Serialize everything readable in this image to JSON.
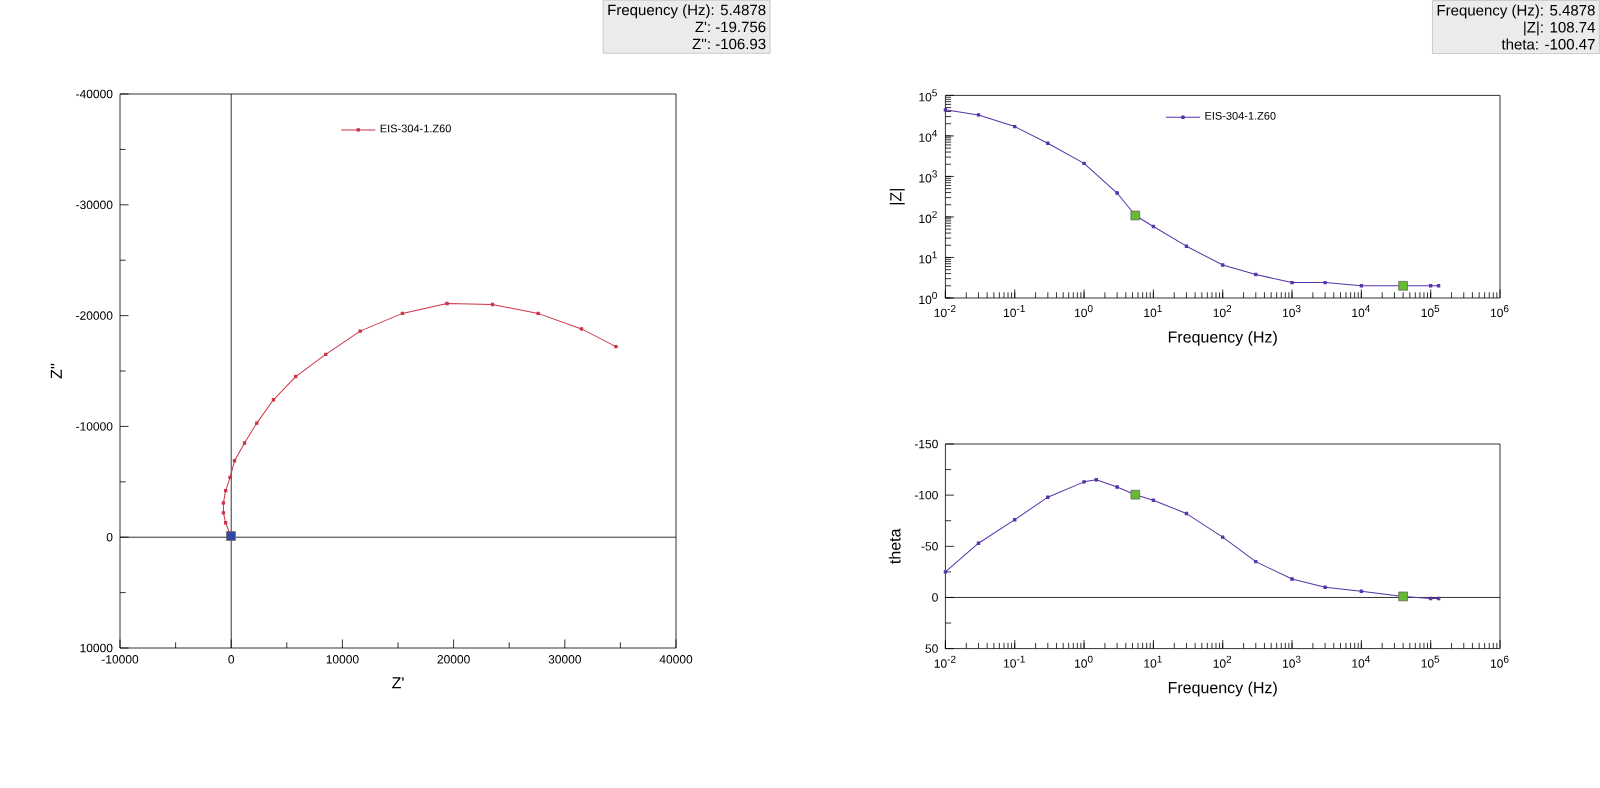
{
  "chart_data": [
    {
      "type": "line",
      "xlabel": "Z'",
      "ylabel": "Z''",
      "xlim": [
        -10000,
        40000
      ],
      "ylim": [
        10000,
        -40000
      ],
      "xticks": [
        -10000,
        0,
        10000,
        20000,
        30000,
        40000
      ],
      "yticks": [
        -40000,
        -30000,
        -20000,
        -10000,
        0,
        10000
      ],
      "legend": "top",
      "marker": "square",
      "line_style": "solid",
      "ref_lines": [
        {
          "axis": "x",
          "value": 0
        },
        {
          "axis": "y",
          "value": 0
        }
      ],
      "annotations": [
        "Frequency (Hz): 5.4878",
        "Z': -19.756",
        "Z'': -106.93"
      ],
      "series": [
        {
          "name": "EIS-304-1.Z60",
          "color": "#cc3344",
          "x": [
            34600,
            31500,
            27600,
            23500,
            19400,
            15400,
            11600,
            8500,
            5800,
            3800,
            2300,
            1200,
            300,
            -100,
            -500,
            -700,
            -700,
            -500,
            -200,
            0
          ],
          "values": [
            -17200,
            -18800,
            -20200,
            -21000,
            -21100,
            -20200,
            -18600,
            -16500,
            -14500,
            -12400,
            -10300,
            -8500,
            -6900,
            -5400,
            -4200,
            -3100,
            -2200,
            -1300,
            null,
            0
          ]
        },
        {
          "type": "scatter",
          "color": "#3344aa",
          "x": [
            -19.756
          ],
          "values": [
            -106.93
          ]
        }
      ]
    },
    {
      "type": "line",
      "xlabel": "Frequency (Hz)",
      "ylabel": "|Z|",
      "log": "xy",
      "xlim": [
        0.01,
        1000000
      ],
      "ylim": [
        1,
        100000
      ],
      "xticks": [
        {
          "value": 0.01,
          "label": "10$^{-2}$"
        },
        {
          "value": 0.1,
          "label": "10$^{-1}$"
        },
        {
          "value": 1,
          "label": "10$^{0}$"
        },
        {
          "value": 10,
          "label": "10$^{1}$"
        },
        {
          "value": 100,
          "label": "10$^{2}$"
        },
        {
          "value": 1000,
          "label": "10$^{3}$"
        },
        {
          "value": 10000,
          "label": "10$^{4}$"
        },
        {
          "value": 100000,
          "label": "10$^{5}$"
        },
        {
          "value": 1000000,
          "label": "10$^{6}$"
        }
      ],
      "yticks": [
        {
          "value": 1,
          "label": "10$^{0}$"
        },
        {
          "value": 10,
          "label": "10$^{1}$"
        },
        {
          "value": 100,
          "label": "10$^{2}$"
        },
        {
          "value": 1000,
          "label": "10$^{3}$"
        },
        {
          "value": 10000,
          "label": "10$^{4}$"
        },
        {
          "value": 100000,
          "label": "10$^{5}$"
        }
      ],
      "legend": "top",
      "marker": "square",
      "line_style": "solid",
      "annotations": [
        "Frequency (Hz): 5.4878",
        "|Z|: 108.74",
        "theta: -100.47"
      ],
      "series": [
        {
          "name": "EIS-304-1.Z60",
          "color": "#5533aa",
          "x": [
            0.01,
            0.03,
            0.1,
            0.3,
            1,
            3,
            5.4878,
            10,
            30,
            100,
            300,
            1000,
            3000,
            10000,
            100000,
            130000
          ],
          "values": [
            44000,
            33000,
            17000,
            6600,
            2100,
            390,
            108.74,
            58,
            19,
            6.5,
            3.8,
            2.4,
            2.4,
            2.0,
            2.0,
            2.0
          ]
        },
        {
          "type": "scatter",
          "color": "#66bb33",
          "x": [
            5.4878,
            40000
          ],
          "values": [
            108.74,
            2.0
          ]
        }
      ]
    },
    {
      "type": "line",
      "xlabel": "Frequency (Hz)",
      "ylabel": "theta",
      "log": "x",
      "xlim": [
        0.01,
        1000000
      ],
      "ylim": [
        50,
        -150
      ],
      "xticks": [
        {
          "value": 0.01,
          "label": "10$^{-2}$"
        },
        {
          "value": 0.1,
          "label": "10$^{-1}$"
        },
        {
          "value": 1,
          "label": "10$^{0}$"
        },
        {
          "value": 10,
          "label": "10$^{1}$"
        },
        {
          "value": 100,
          "label": "10$^{2}$"
        },
        {
          "value": 1000,
          "label": "10$^{3}$"
        },
        {
          "value": 10000,
          "label": "10$^{4}$"
        },
        {
          "value": 100000,
          "label": "10$^{5}$"
        },
        {
          "value": 1000000,
          "label": "10$^{6}$"
        }
      ],
      "yticks": [
        -150,
        -100,
        -50,
        0,
        50
      ],
      "marker": "square",
      "line_style": "solid",
      "ref_lines": [
        {
          "axis": "y",
          "value": 0
        }
      ],
      "series": [
        {
          "color": "#5533aa",
          "x": [
            0.01,
            0.03,
            0.1,
            0.3,
            1,
            1.5,
            3,
            5.4878,
            10,
            30,
            100,
            300,
            1000,
            3000,
            10000,
            40000,
            100000,
            130000
          ],
          "values": [
            -25,
            -53,
            -76,
            -98,
            -113,
            -115,
            -108,
            -100.47,
            -95,
            -82,
            -59,
            -35,
            -18,
            -10,
            -6,
            -1,
            1,
            1
          ]
        },
        {
          "type": "scatter",
          "color": "#66bb33",
          "x": [
            5.4878,
            40000
          ],
          "values": [
            -100.47,
            -1
          ]
        }
      ]
    }
  ]
}
